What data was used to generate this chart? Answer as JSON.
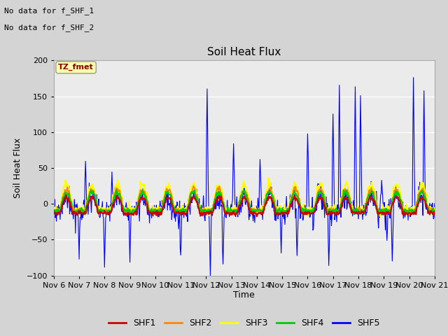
{
  "title": "Soil Heat Flux",
  "ylabel": "Soil Heat Flux",
  "xlabel": "Time",
  "note_line1": "No data for f_SHF_1",
  "note_line2": "No data for f_SHF_2",
  "tz_label": "TZ_fmet",
  "ylim": [
    -100,
    200
  ],
  "xlim": [
    0,
    360
  ],
  "x_tick_labels": [
    "Nov 6",
    "Nov 7",
    "Nov 8",
    "Nov 9",
    "Nov 10",
    "Nov 11",
    "Nov 12",
    "Nov 13",
    "Nov 14",
    "Nov 15",
    "Nov 16",
    "Nov 17",
    "Nov 18",
    "Nov 19",
    "Nov 20",
    "Nov 21"
  ],
  "x_tick_positions": [
    0,
    24,
    48,
    72,
    96,
    120,
    144,
    168,
    192,
    216,
    240,
    264,
    288,
    312,
    336,
    360
  ],
  "series_colors": {
    "SHF1": "#cc0000",
    "SHF2": "#ff8800",
    "SHF3": "#ffff00",
    "SHF4": "#00cc00",
    "SHF5": "#0000ff"
  },
  "legend_colors": [
    "#cc0000",
    "#ff8800",
    "#ffff00",
    "#00cc00",
    "#0000ff"
  ],
  "legend_labels": [
    "SHF1",
    "SHF2",
    "SHF3",
    "SHF4",
    "SHF5"
  ],
  "fig_facecolor": "#d4d4d4",
  "ax_facecolor": "#ebebeb",
  "grid_color": "#ffffff"
}
